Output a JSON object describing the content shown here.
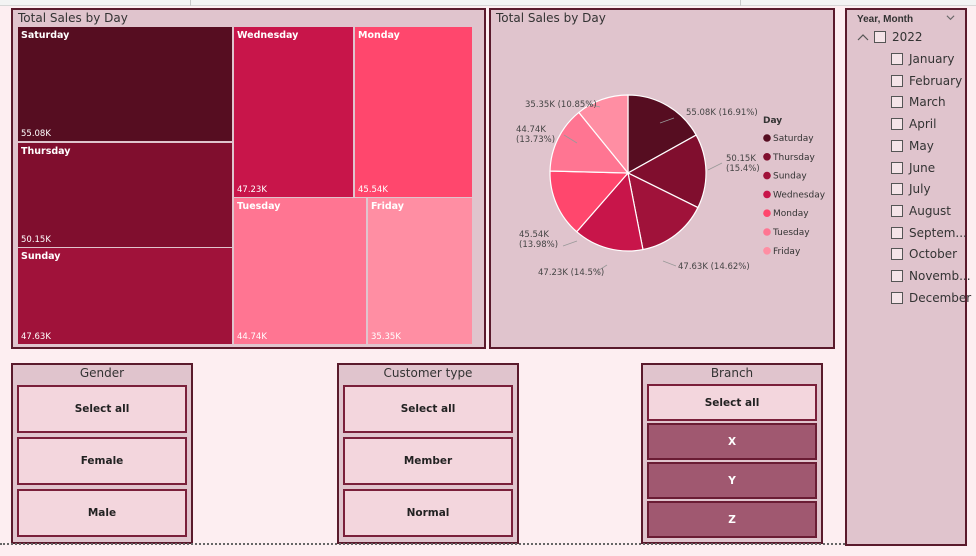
{
  "treemap": {
    "title": "Total Sales by Day",
    "tiles": [
      {
        "day": "Saturday",
        "value": "55.08K",
        "color": "#560d21"
      },
      {
        "day": "Thursday",
        "value": "50.15K",
        "color": "#800e2e"
      },
      {
        "day": "Sunday",
        "value": "47.63K",
        "color": "#a0123a"
      },
      {
        "day": "Wednesday",
        "value": "47.23K",
        "color": "#c8154a"
      },
      {
        "day": "Monday",
        "value": "45.54K",
        "color": "#ff476d"
      },
      {
        "day": "Tuesday",
        "value": "44.74K",
        "color": "#ff7592"
      },
      {
        "day": "Friday",
        "value": "35.35K",
        "color": "#ff8ea3"
      }
    ]
  },
  "pie": {
    "title": "Total Sales by Day",
    "legend_title": "Day",
    "slices": [
      {
        "day": "Saturday",
        "label": "55.08K (16.91%)",
        "value": 55.08,
        "color": "#560d21"
      },
      {
        "day": "Thursday",
        "label": "50.15K (15.4%)",
        "value": 50.15,
        "color": "#800e2e"
      },
      {
        "day": "Sunday",
        "label": "47.63K (14.62%)",
        "value": 47.63,
        "color": "#a0123a"
      },
      {
        "day": "Wednesday",
        "label": "47.23K (14.5%)",
        "value": 47.23,
        "color": "#c8154a"
      },
      {
        "day": "Monday",
        "label": "45.54K (13.98%)",
        "value": 45.54,
        "color": "#ff476d"
      },
      {
        "day": "Tuesday",
        "label": "44.74K (13.73%)",
        "value": 44.74,
        "color": "#ff7592"
      },
      {
        "day": "Friday",
        "label": "35.35K (10.85%)",
        "value": 35.35,
        "color": "#ff8ea3"
      }
    ]
  },
  "gender": {
    "title": "Gender",
    "options": [
      "Select all",
      "Female",
      "Male"
    ]
  },
  "customer_type": {
    "title": "Customer type",
    "options": [
      "Select all",
      "Member",
      "Normal"
    ]
  },
  "branch": {
    "title": "Branch",
    "options": [
      "Select all",
      "X",
      "Y",
      "Z"
    ],
    "selected": [
      "X",
      "Y",
      "Z"
    ]
  },
  "year_month": {
    "title": "Year, Month",
    "year": "2022",
    "months": [
      "January",
      "February",
      "March",
      "April",
      "May",
      "June",
      "July",
      "August",
      "Septem...",
      "October",
      "Novemb...",
      "December"
    ]
  },
  "colors": {
    "panel_bg": "#e0c4cd",
    "panel_border": "#5a1a2c",
    "page_bg": "#fdeef1",
    "selected_button": "#a05870"
  }
}
